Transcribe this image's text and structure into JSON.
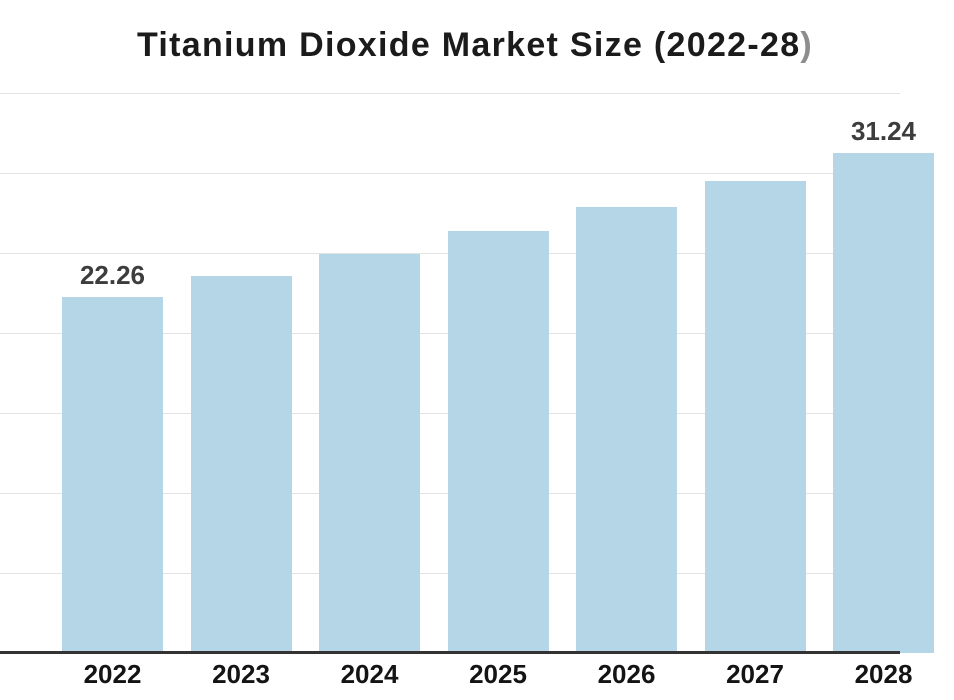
{
  "title": {
    "main": "Titanium Dioxide Market Size (2022-28",
    "closing_paren": ")"
  },
  "chart_data": {
    "type": "bar",
    "title": "Titanium Dioxide Market Size (2022-28)",
    "categories": [
      "2022",
      "2023",
      "2024",
      "2025",
      "2026",
      "2027",
      "2028"
    ],
    "values": [
      22.26,
      23.55,
      24.92,
      26.37,
      27.9,
      29.53,
      31.24
    ],
    "data_labels": [
      "22.26",
      "",
      "",
      "",
      "",
      "",
      "31.24"
    ],
    "xlabel": "",
    "ylabel": "",
    "ylim": [
      0,
      35
    ],
    "grid_step": 5,
    "grid": true,
    "y_tick_labels_visible": false,
    "legend": "none",
    "colors": {
      "background": "#ffffff",
      "bar_fill": "#b5d6e6",
      "title_text": "#1b1b1b",
      "title_paren": "#8d8d8d",
      "value_label": "#3d3d3d",
      "x_tick_label": "#141414",
      "axis_line": "#333333",
      "gridline": "#e3e3e3"
    }
  }
}
